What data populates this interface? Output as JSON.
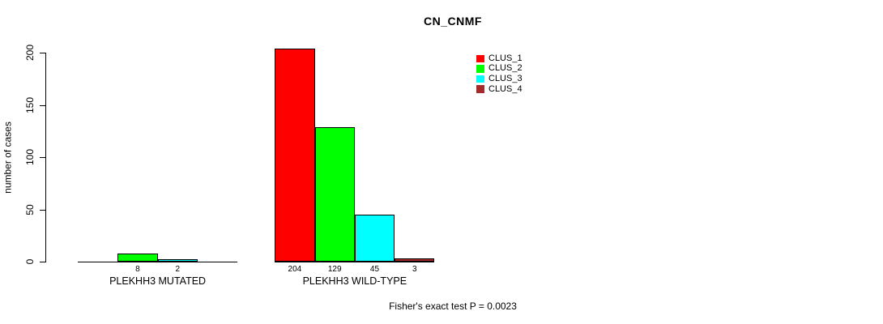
{
  "chart_data": {
    "type": "bar",
    "title": "CN_CNMF",
    "ylabel": "number of cases",
    "xlabel": "",
    "ylim": [
      0,
      200
    ],
    "yticks": [
      0,
      50,
      100,
      150,
      200
    ],
    "grid": false,
    "legend_position": "top-right",
    "categories": [
      "PLEKHH3 MUTATED",
      "PLEKHH3 WILD-TYPE"
    ],
    "series": [
      {
        "name": "CLUS_1",
        "color": "#ff0000",
        "values": [
          0,
          204
        ]
      },
      {
        "name": "CLUS_2",
        "color": "#00ff00",
        "values": [
          8,
          129
        ]
      },
      {
        "name": "CLUS_3",
        "color": "#00ffff",
        "values": [
          2,
          45
        ]
      },
      {
        "name": "CLUS_4",
        "color": "#a52a2a",
        "values": [
          0,
          3
        ]
      }
    ],
    "bar_value_labels": {
      "show": true,
      "hide_zero": true
    },
    "annotation": "Fisher's exact test P = 0.0023"
  }
}
